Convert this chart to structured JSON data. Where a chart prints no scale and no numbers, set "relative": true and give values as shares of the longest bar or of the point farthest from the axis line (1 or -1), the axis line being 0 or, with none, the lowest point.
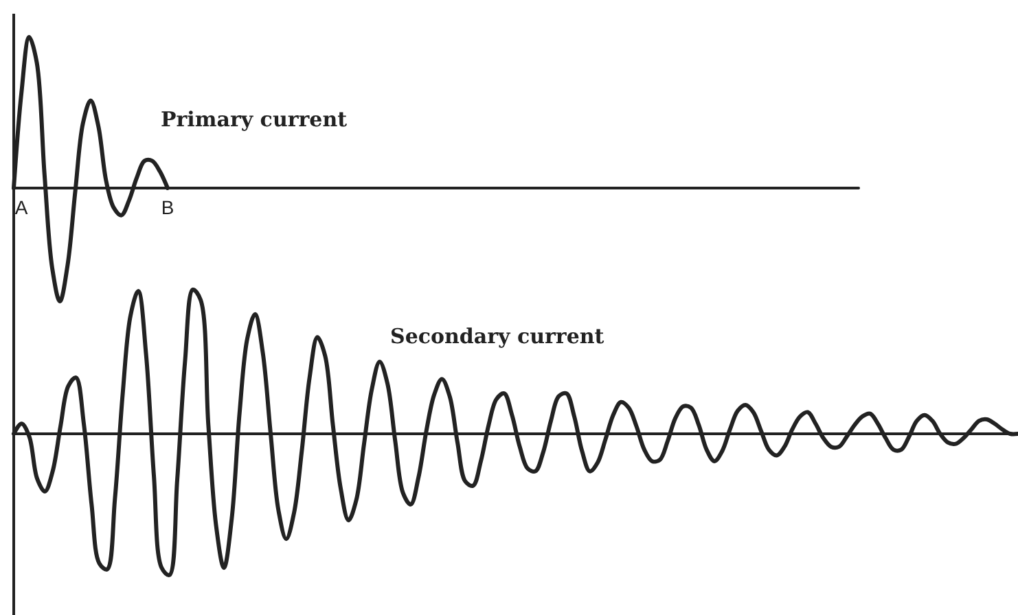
{
  "chart_data": [
    {
      "type": "line",
      "relative": true,
      "tick_labels": "x",
      "categories": [
        null,
        "A",
        null,
        null,
        null,
        null,
        null,
        null,
        null,
        null,
        null,
        null,
        null,
        null,
        null,
        null,
        null,
        null,
        null,
        null,
        "B"
      ],
      "series": [
        {
          "name": "Primary current",
          "color": "#222222",
          "values": [
            0,
            0.63,
            1,
            0.83,
            0.09,
            -0.53,
            -0.75,
            -0.51,
            -0.02,
            0.43,
            0.58,
            0.41,
            0.05,
            -0.13,
            -0.18,
            -0.08,
            0.07,
            0.18,
            0.18,
            0.11,
            0
          ]
        }
      ]
    },
    {
      "type": "line",
      "relative": true,
      "tick_labels": false,
      "categories": [
        null,
        null,
        null,
        null,
        null,
        null,
        null,
        null,
        null,
        null,
        null,
        null,
        null,
        null,
        null,
        null,
        null,
        null,
        null,
        null,
        null,
        null,
        null,
        null,
        null,
        null,
        null,
        null,
        null,
        null,
        null,
        null,
        null,
        null,
        null,
        null,
        null,
        null,
        null,
        null,
        null,
        null,
        null,
        null,
        null,
        null,
        null,
        null,
        null,
        null,
        null,
        null,
        null,
        null,
        null,
        null,
        null,
        null,
        null,
        null,
        null,
        null,
        null,
        null,
        null,
        null,
        null,
        null,
        null,
        null,
        null,
        null,
        null,
        null,
        null,
        null,
        null,
        null,
        null,
        null,
        null,
        null,
        null,
        null,
        null,
        null,
        null,
        null,
        null,
        null,
        null,
        null,
        null,
        null,
        null,
        null,
        null,
        null,
        null,
        null,
        null,
        null,
        null,
        null,
        null,
        null,
        null,
        null,
        null,
        null,
        null,
        null,
        null,
        null,
        null,
        null,
        null,
        null,
        null,
        null,
        null,
        null,
        null,
        null,
        null,
        null,
        null,
        null,
        null,
        null
      ],
      "series": [
        {
          "name": "Secondary current",
          "color": "#222222",
          "values": [
            0,
            0.07,
            -0.02,
            -0.31,
            -0.4,
            -0.26,
            0.05,
            0.33,
            0.39,
            0.07,
            -0.49,
            -0.9,
            -0.94,
            -0.45,
            0.28,
            0.82,
            0.99,
            0.55,
            -0.29,
            -0.93,
            -0.98,
            -0.32,
            0.5,
            1,
            0.93,
            0.06,
            -0.64,
            -0.93,
            -0.59,
            0.14,
            0.66,
            0.83,
            0.56,
            0,
            -0.53,
            -0.73,
            -0.55,
            -0.12,
            0.39,
            0.67,
            0.54,
            0.06,
            -0.38,
            -0.6,
            -0.46,
            -0.07,
            0.31,
            0.5,
            0.35,
            -0.05,
            -0.41,
            -0.49,
            -0.3,
            0.02,
            0.27,
            0.38,
            0.26,
            -0.06,
            -0.33,
            -0.36,
            -0.19,
            0.06,
            0.24,
            0.28,
            0.13,
            -0.09,
            -0.24,
            -0.26,
            -0.13,
            0.09,
            0.26,
            0.28,
            0.12,
            -0.12,
            -0.26,
            -0.2,
            -0.04,
            0.13,
            0.22,
            0.18,
            0.05,
            -0.11,
            -0.19,
            -0.18,
            -0.05,
            0.11,
            0.19,
            0.18,
            0.06,
            -0.11,
            -0.19,
            -0.12,
            0.03,
            0.16,
            0.2,
            0.15,
            0.02,
            -0.11,
            -0.15,
            -0.09,
            0.03,
            0.12,
            0.15,
            0.07,
            -0.03,
            -0.09,
            -0.09,
            -0.02,
            0.06,
            0.12,
            0.14,
            0.07,
            -0.03,
            -0.11,
            -0.11,
            -0.02,
            0.09,
            0.13,
            0.09,
            0,
            -0.06,
            -0.07,
            -0.03,
            0.03,
            0.09,
            0.1,
            0.07,
            0.03,
            0,
            0
          ]
        }
      ]
    }
  ]
}
